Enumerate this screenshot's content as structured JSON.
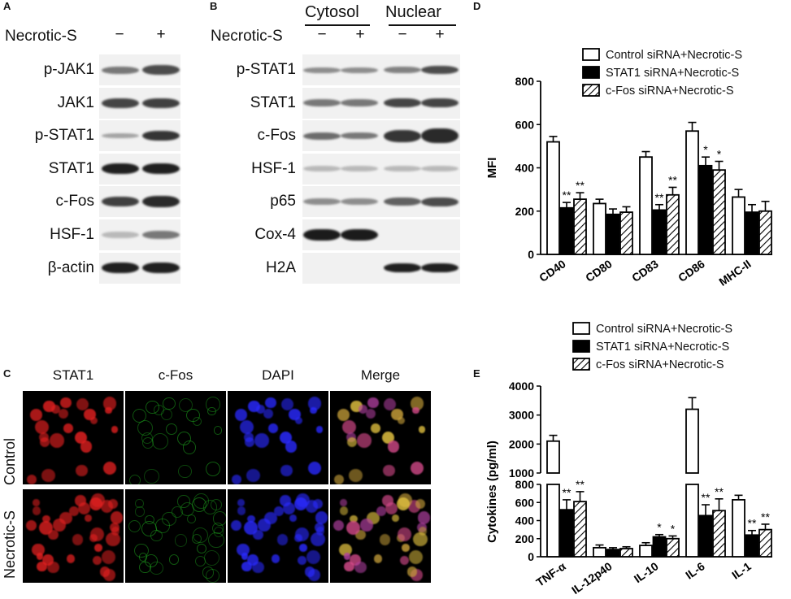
{
  "panelA": {
    "letter": "A",
    "treatment_label": "Necrotic-S",
    "signs": [
      "−",
      "+"
    ],
    "rows": [
      "p-JAK1",
      "JAK1",
      "p-STAT1",
      "STAT1",
      "c-Fos",
      "HSF-1",
      "β-actin"
    ]
  },
  "panelB": {
    "letter": "B",
    "fractions": [
      "Cytosol",
      "Nuclear"
    ],
    "treatment_label": "Necrotic-S",
    "signs": [
      "−",
      "+",
      "−",
      "+"
    ],
    "rows": [
      "p-STAT1",
      "STAT1",
      "c-Fos",
      "HSF-1",
      "p65",
      "Cox-4",
      "H2A"
    ]
  },
  "panelC": {
    "letter": "C",
    "columns": [
      "STAT1",
      "c-Fos",
      "DAPI",
      "Merge"
    ],
    "rows": [
      "Control",
      "Necrotic-S"
    ],
    "colors": {
      "stat1": "#e02020",
      "cfos": "#22c022",
      "dapi": "#2a2aff"
    }
  },
  "chart_data": [
    {
      "panel": "D",
      "type": "bar",
      "ylabel": "MFI",
      "ylim": [
        0,
        800
      ],
      "yticks": [
        0,
        200,
        400,
        600,
        800
      ],
      "categories": [
        "CD40",
        "CD80",
        "CD83",
        "CD86",
        "MHC-II"
      ],
      "series": [
        {
          "name": "Control siRNA+Necrotic-S",
          "pattern": "open",
          "values": [
            520,
            235,
            450,
            570,
            265
          ],
          "errors": [
            25,
            20,
            25,
            40,
            35
          ]
        },
        {
          "name": "STAT1 siRNA+Necrotic-S",
          "pattern": "solid",
          "values": [
            215,
            185,
            205,
            410,
            195
          ],
          "errors": [
            25,
            25,
            25,
            40,
            35
          ]
        },
        {
          "name": "c-Fos siRNA+Necrotic-S",
          "pattern": "hatched",
          "values": [
            255,
            195,
            275,
            390,
            200
          ],
          "errors": [
            30,
            25,
            35,
            40,
            45
          ]
        }
      ],
      "significance": [
        [
          "",
          "**",
          "**"
        ],
        [
          "",
          "",
          ""
        ],
        [
          "",
          "**",
          "**"
        ],
        [
          "",
          "*",
          "*"
        ],
        [
          "",
          "",
          ""
        ]
      ]
    },
    {
      "panel": "E",
      "type": "bar",
      "ylabel": "Cytokines (pg/ml)",
      "axis_break": [
        800,
        1000
      ],
      "lower_ylim": [
        0,
        800
      ],
      "upper_ylim": [
        1000,
        4000
      ],
      "lower_ticks": [
        0,
        200,
        400,
        600,
        800
      ],
      "upper_ticks": [
        1000,
        2000,
        3000,
        4000
      ],
      "categories": [
        "TNF-α",
        "IL-12p40",
        "IL-10",
        "IL-6",
        "IL-1"
      ],
      "series": [
        {
          "name": "Control siRNA+Necrotic-S",
          "pattern": "open",
          "values": [
            2100,
            100,
            125,
            3200,
            630
          ],
          "errors": [
            200,
            30,
            30,
            400,
            50
          ]
        },
        {
          "name": "STAT1 siRNA+Necrotic-S",
          "pattern": "solid",
          "values": [
            520,
            80,
            220,
            455,
            240
          ],
          "errors": [
            110,
            20,
            25,
            120,
            50
          ]
        },
        {
          "name": "c-Fos siRNA+Necrotic-S",
          "pattern": "hatched",
          "values": [
            610,
            90,
            200,
            510,
            300
          ],
          "errors": [
            110,
            20,
            30,
            130,
            60
          ]
        }
      ],
      "significance": [
        [
          "",
          "**",
          "**"
        ],
        [
          "",
          "",
          ""
        ],
        [
          "",
          "*",
          "*"
        ],
        [
          "",
          "**",
          "**"
        ],
        [
          "",
          "**",
          "**"
        ]
      ]
    }
  ]
}
